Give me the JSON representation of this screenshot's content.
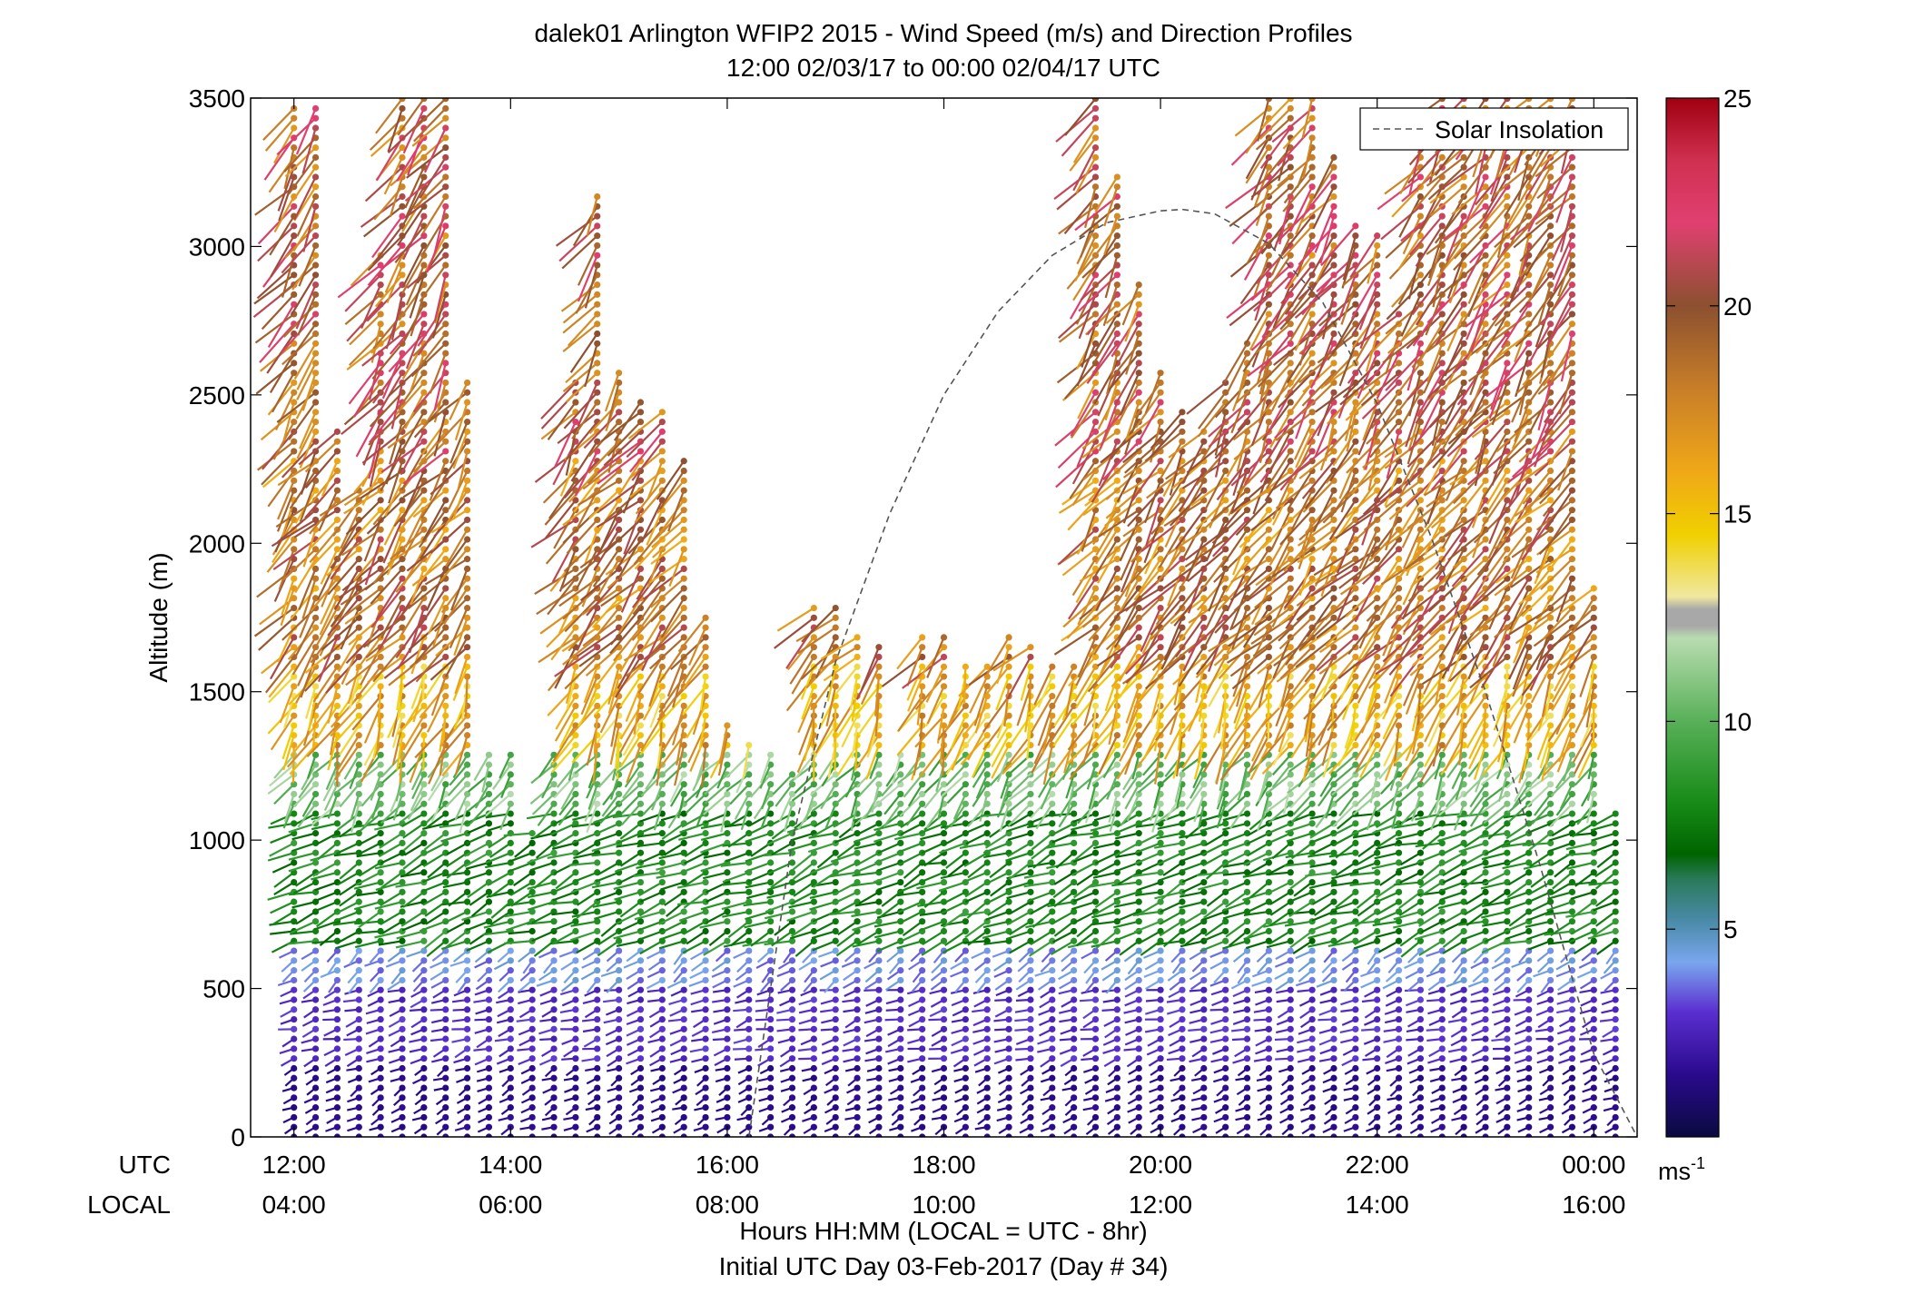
{
  "chart_data": {
    "type": "scatter",
    "title": "dalek01 Arlington WFIP2 2015 - Wind Speed (m/s) and Direction Profiles",
    "subtitle": "12:00 02/03/17 to 00:00 02/04/17  UTC",
    "ylabel": "Altitude (m)",
    "xlabel": "Hours HH:MM  (LOCAL = UTC - 8hr)",
    "xlabel2": "Initial UTC Day 03-Feb-2017 (Day # 34)",
    "utc_row_label": "UTC",
    "local_row_label": "LOCAL",
    "xlim": [
      11.6,
      24.4
    ],
    "ylim": [
      0,
      3500
    ],
    "yticks": [
      {
        "value": 0,
        "label": "0"
      },
      {
        "value": 500,
        "label": "500"
      },
      {
        "value": 1000,
        "label": "1000"
      },
      {
        "value": 1500,
        "label": "1500"
      },
      {
        "value": 2000,
        "label": "2000"
      },
      {
        "value": 2500,
        "label": "2500"
      },
      {
        "value": 3000,
        "label": "3000"
      },
      {
        "value": 3500,
        "label": "3500"
      }
    ],
    "xticks": [
      {
        "value": 12,
        "utc": "12:00",
        "local": "04:00"
      },
      {
        "value": 14,
        "utc": "14:00",
        "local": "06:00"
      },
      {
        "value": 16,
        "utc": "16:00",
        "local": "08:00"
      },
      {
        "value": 18,
        "utc": "18:00",
        "local": "10:00"
      },
      {
        "value": 20,
        "utc": "20:00",
        "local": "12:00"
      },
      {
        "value": 22,
        "utc": "22:00",
        "local": "14:00"
      },
      {
        "value": 24,
        "utc": "00:00",
        "local": "16:00"
      }
    ],
    "legend": {
      "label": "Solar Insolation",
      "placement": "top-right"
    },
    "solar_insolation": {
      "x": [
        16.2,
        16.6,
        17.0,
        17.5,
        18.0,
        18.5,
        19.0,
        19.5,
        20.0,
        20.2,
        20.5,
        21.0,
        21.5,
        22.0,
        22.5,
        23.0,
        23.5,
        24.0,
        24.4
      ],
      "y": [
        0,
        1000,
        1600,
        2100,
        2500,
        2780,
        2970,
        3080,
        3120,
        3125,
        3110,
        3010,
        2810,
        2470,
        2020,
        1500,
        920,
        280,
        0
      ]
    },
    "colorbar": {
      "unit_base": "ms",
      "unit_exp": "-1",
      "range": [
        0,
        25
      ],
      "ticks": [
        5,
        10,
        15,
        20,
        25
      ],
      "stops": [
        {
          "v": 0,
          "c": "#0a0a40"
        },
        {
          "v": 1.5,
          "c": "#2a0a8c"
        },
        {
          "v": 3,
          "c": "#5a2ed0"
        },
        {
          "v": 4.2,
          "c": "#7aa6ee"
        },
        {
          "v": 5.2,
          "c": "#4a8aa8"
        },
        {
          "v": 6.2,
          "c": "#2a7a5a"
        },
        {
          "v": 6.8,
          "c": "#006400"
        },
        {
          "v": 8,
          "c": "#168a16"
        },
        {
          "v": 10,
          "c": "#58b058"
        },
        {
          "v": 12,
          "c": "#b8dcb0"
        },
        {
          "v": 12.3,
          "c": "#a8a8a8"
        },
        {
          "v": 12.7,
          "c": "#a8a8a8"
        },
        {
          "v": 13,
          "c": "#f0e8a0"
        },
        {
          "v": 14.5,
          "c": "#f0d000"
        },
        {
          "v": 16,
          "c": "#f0a818"
        },
        {
          "v": 18,
          "c": "#c87e28"
        },
        {
          "v": 20,
          "c": "#8c5030"
        },
        {
          "v": 22,
          "c": "#e04070"
        },
        {
          "v": 23.5,
          "c": "#d03050"
        },
        {
          "v": 25,
          "c": "#a00010"
        }
      ]
    },
    "profiles": {
      "time_start": 12.0,
      "time_end": 24.25,
      "time_step": 0.2,
      "height_step": 33,
      "wind": [
        {
          "zmax": 250,
          "speed": 1.5,
          "dir": 240
        },
        {
          "zmax": 500,
          "speed": 2.8,
          "dir": 250
        },
        {
          "zmax": 650,
          "speed": 4.0,
          "dir": 230
        },
        {
          "zmax": 1100,
          "speed": 8.0,
          "dir": 245
        },
        {
          "zmax": 1300,
          "speed": 10.5,
          "dir": 210
        },
        {
          "zmax": 1600,
          "speed": 16.0,
          "dir": 200
        },
        {
          "zmax": 2300,
          "speed": 18.5,
          "dir": 215
        },
        {
          "zmax": 3500,
          "speed": 19.5,
          "dir": 210
        }
      ],
      "top_heights": [
        [
          12.0,
          3470
        ],
        [
          12.4,
          2400
        ],
        [
          12.6,
          2200
        ],
        [
          12.8,
          3000
        ],
        [
          13.0,
          3500
        ],
        [
          13.2,
          3500
        ],
        [
          13.4,
          3500
        ],
        [
          13.6,
          2550
        ],
        [
          13.8,
          1300
        ],
        [
          14.0,
          1300
        ],
        [
          14.2,
          1050
        ],
        [
          14.4,
          1300
        ],
        [
          14.6,
          2550
        ],
        [
          14.8,
          3200
        ],
        [
          15.0,
          2600
        ],
        [
          15.2,
          2500
        ],
        [
          15.4,
          2450
        ],
        [
          15.6,
          2300
        ],
        [
          15.8,
          1750
        ],
        [
          16.0,
          1400
        ],
        [
          16.2,
          1350
        ],
        [
          16.4,
          1300
        ],
        [
          16.6,
          1250
        ],
        [
          16.8,
          1800
        ],
        [
          17.0,
          1800
        ],
        [
          17.2,
          1700
        ],
        [
          17.4,
          1650
        ],
        [
          17.6,
          1300
        ],
        [
          17.8,
          1700
        ],
        [
          18.0,
          1700
        ],
        [
          18.2,
          1600
        ],
        [
          18.4,
          1600
        ],
        [
          18.6,
          1700
        ],
        [
          18.8,
          1650
        ],
        [
          19.0,
          1600
        ],
        [
          19.2,
          1600
        ],
        [
          19.4,
          3500
        ],
        [
          19.6,
          3250
        ],
        [
          19.8,
          2900
        ],
        [
          20.0,
          2600
        ],
        [
          20.2,
          2450
        ],
        [
          20.4,
          2400
        ],
        [
          20.6,
          2550
        ],
        [
          20.8,
          2700
        ],
        [
          21.0,
          3500
        ],
        [
          21.2,
          3500
        ],
        [
          21.4,
          3500
        ],
        [
          21.6,
          3300
        ],
        [
          21.8,
          3100
        ],
        [
          22.0,
          3050
        ],
        [
          22.2,
          2800
        ],
        [
          22.4,
          3350
        ],
        [
          22.6,
          3500
        ],
        [
          22.8,
          3500
        ],
        [
          23.0,
          3500
        ],
        [
          23.2,
          3500
        ],
        [
          23.4,
          3500
        ],
        [
          23.6,
          3500
        ],
        [
          23.8,
          3500
        ],
        [
          24.0,
          1850
        ],
        [
          24.25,
          1100
        ]
      ]
    }
  }
}
